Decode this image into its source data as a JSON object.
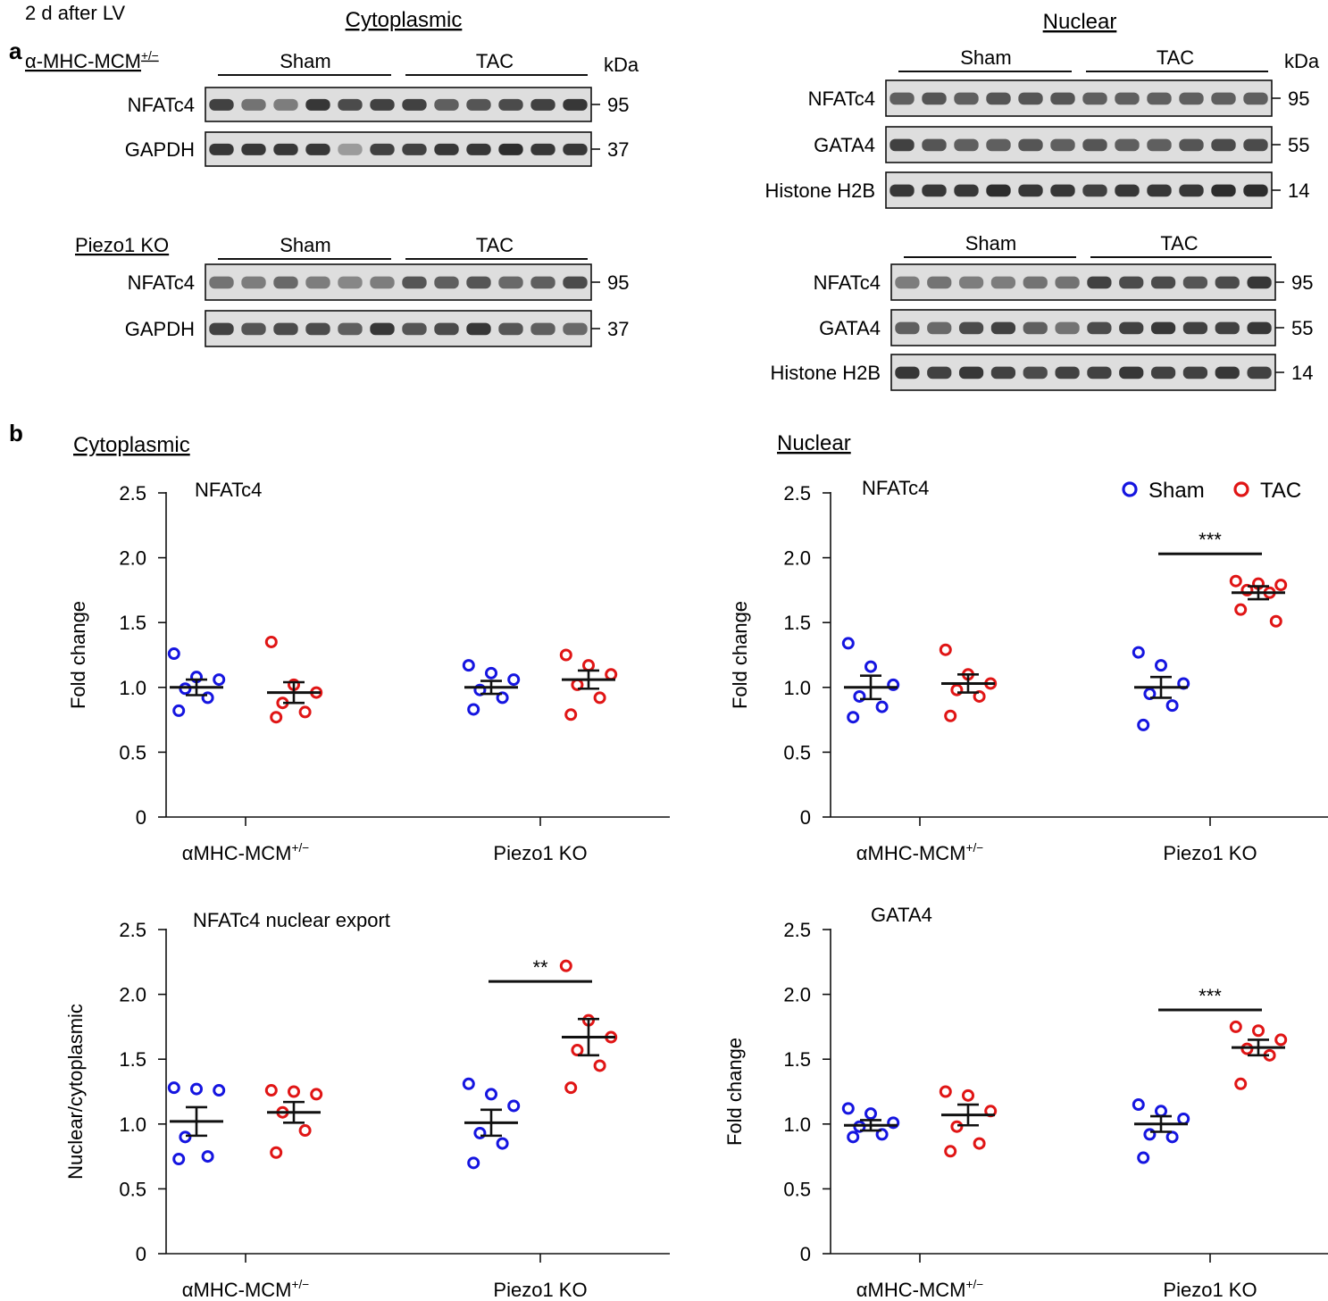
{
  "header": {
    "timepoint": "2 d after LV",
    "panel_a": "a",
    "panel_b": "b",
    "cyto_title": "Cytoplasmic",
    "nuc_title": "Nuclear",
    "cyto_title_b": "Cytoplasmic",
    "nuc_title_b": "Nuclear"
  },
  "blots": {
    "kda": "kDa",
    "cyto": [
      {
        "genotype_base": "α-MHC-MCM",
        "genotype_sup": "+/−",
        "sham": "Sham",
        "tac": "TAC",
        "lanes": [
          {
            "label": "NFATc4",
            "kda": "95",
            "intensity": [
              0.85,
              0.6,
              0.55,
              0.9,
              0.8,
              0.85,
              0.85,
              0.7,
              0.75,
              0.8,
              0.85,
              0.9
            ]
          },
          {
            "label": "GAPDH",
            "kda": "37",
            "intensity": [
              0.9,
              0.9,
              0.9,
              0.9,
              0.4,
              0.85,
              0.85,
              0.9,
              0.9,
              0.95,
              0.9,
              0.9
            ]
          }
        ]
      },
      {
        "genotype_base": "Piezo1 KO",
        "genotype_sup": "",
        "sham": "Sham",
        "tac": "TAC",
        "lanes": [
          {
            "label": "NFATc4",
            "kda": "95",
            "intensity": [
              0.6,
              0.55,
              0.65,
              0.55,
              0.5,
              0.55,
              0.75,
              0.7,
              0.75,
              0.65,
              0.7,
              0.8
            ]
          },
          {
            "label": "GAPDH",
            "kda": "37",
            "intensity": [
              0.85,
              0.75,
              0.8,
              0.8,
              0.7,
              0.9,
              0.75,
              0.8,
              0.9,
              0.75,
              0.7,
              0.65
            ]
          }
        ]
      }
    ],
    "nuc": [
      {
        "sham": "Sham",
        "tac": "TAC",
        "lanes": [
          {
            "label": "NFATc4",
            "kda": "95",
            "intensity": [
              0.7,
              0.75,
              0.7,
              0.75,
              0.75,
              0.75,
              0.7,
              0.7,
              0.7,
              0.7,
              0.7,
              0.7
            ]
          },
          {
            "label": "GATA4",
            "kda": "55",
            "intensity": [
              0.85,
              0.75,
              0.7,
              0.7,
              0.75,
              0.7,
              0.75,
              0.7,
              0.7,
              0.75,
              0.8,
              0.8
            ]
          },
          {
            "label": "Histone H2B",
            "kda": "14",
            "intensity": [
              0.9,
              0.9,
              0.9,
              0.95,
              0.9,
              0.9,
              0.85,
              0.9,
              0.9,
              0.9,
              0.95,
              0.95
            ]
          }
        ]
      },
      {
        "sham": "Sham",
        "tac": "TAC",
        "lanes": [
          {
            "label": "NFATc4",
            "kda": "95",
            "intensity": [
              0.55,
              0.6,
              0.55,
              0.55,
              0.6,
              0.6,
              0.85,
              0.8,
              0.8,
              0.75,
              0.8,
              0.9
            ]
          },
          {
            "label": "GATA4",
            "kda": "55",
            "intensity": [
              0.7,
              0.65,
              0.8,
              0.85,
              0.7,
              0.6,
              0.8,
              0.85,
              0.9,
              0.85,
              0.85,
              0.9
            ]
          },
          {
            "label": "Histone H2B",
            "kda": "14",
            "intensity": [
              0.9,
              0.85,
              0.9,
              0.85,
              0.8,
              0.85,
              0.85,
              0.9,
              0.85,
              0.85,
              0.9,
              0.85
            ]
          }
        ]
      }
    ]
  },
  "legend": {
    "sham": "Sham",
    "tac": "TAC"
  },
  "colors": {
    "sham": "#1515e0",
    "tac": "#e01515",
    "ink": "#111111"
  },
  "chart_data": [
    {
      "id": "cyto_nfatc4",
      "type": "scatter",
      "title": "NFATc4",
      "ylabel": "Fold change",
      "ylim": [
        0,
        2.5
      ],
      "yticks": [
        "0",
        "0.5",
        "1.0",
        "1.5",
        "2.0",
        "2.5"
      ],
      "groups": [
        {
          "base": "αMHC-MCM",
          "sup": "+/−"
        },
        {
          "base": "Piezo1 KO",
          "sup": ""
        }
      ],
      "series": [
        {
          "name": "Sham",
          "group": 0,
          "mean": 1.0,
          "sem": 0.06,
          "points": [
            1.26,
            1.08,
            1.06,
            0.99,
            0.92,
            0.82
          ]
        },
        {
          "name": "TAC",
          "group": 0,
          "mean": 0.96,
          "sem": 0.08,
          "points": [
            1.35,
            1.02,
            0.96,
            0.88,
            0.81,
            0.77
          ]
        },
        {
          "name": "Sham",
          "group": 1,
          "mean": 1.0,
          "sem": 0.05,
          "points": [
            1.17,
            1.11,
            1.06,
            0.98,
            0.92,
            0.83
          ]
        },
        {
          "name": "TAC",
          "group": 1,
          "mean": 1.06,
          "sem": 0.07,
          "points": [
            1.25,
            1.17,
            1.1,
            1.02,
            0.92,
            0.79
          ]
        }
      ],
      "significance": []
    },
    {
      "id": "nuc_nfatc4",
      "type": "scatter",
      "title": "NFATc4",
      "ylabel": "Fold change",
      "ylim": [
        0,
        2.5
      ],
      "yticks": [
        "0",
        "0.5",
        "1.0",
        "1.5",
        "2.0",
        "2.5"
      ],
      "groups": [
        {
          "base": "αMHC-MCM",
          "sup": "+/−"
        },
        {
          "base": "Piezo1 KO",
          "sup": ""
        }
      ],
      "series": [
        {
          "name": "Sham",
          "group": 0,
          "mean": 1.0,
          "sem": 0.09,
          "points": [
            1.34,
            1.16,
            1.02,
            0.93,
            0.85,
            0.77
          ]
        },
        {
          "name": "TAC",
          "group": 0,
          "mean": 1.03,
          "sem": 0.07,
          "points": [
            1.29,
            1.1,
            1.03,
            0.98,
            0.93,
            0.78
          ]
        },
        {
          "name": "Sham",
          "group": 1,
          "mean": 1.0,
          "sem": 0.08,
          "points": [
            1.27,
            1.17,
            1.03,
            0.95,
            0.86,
            0.71
          ]
        },
        {
          "name": "TAC",
          "group": 1,
          "mean": 1.73,
          "sem": 0.05,
          "points": [
            1.82,
            1.8,
            1.79,
            1.75,
            1.73,
            1.6,
            1.51
          ]
        }
      ],
      "significance": [
        {
          "group": 1,
          "label": "***",
          "y": 2.03
        }
      ]
    },
    {
      "id": "export_ratio",
      "type": "scatter",
      "title": "NFATc4 nuclear export",
      "ylabel": "Nuclear/cytoplasmic",
      "ylim": [
        0,
        2.5
      ],
      "yticks": [
        "0",
        "0.5",
        "1.0",
        "1.5",
        "2.0",
        "2.5"
      ],
      "groups": [
        {
          "base": "αMHC-MCM",
          "sup": "+/−"
        },
        {
          "base": "Piezo1 KO",
          "sup": ""
        }
      ],
      "series": [
        {
          "name": "Sham",
          "group": 0,
          "mean": 1.02,
          "sem": 0.11,
          "points": [
            1.28,
            1.27,
            1.26,
            0.9,
            0.75,
            0.73
          ]
        },
        {
          "name": "TAC",
          "group": 0,
          "mean": 1.09,
          "sem": 0.08,
          "points": [
            1.26,
            1.25,
            1.23,
            1.09,
            0.95,
            0.78
          ]
        },
        {
          "name": "Sham",
          "group": 1,
          "mean": 1.01,
          "sem": 0.1,
          "points": [
            1.31,
            1.23,
            1.14,
            0.93,
            0.85,
            0.7
          ]
        },
        {
          "name": "TAC",
          "group": 1,
          "mean": 1.67,
          "sem": 0.14,
          "points": [
            2.22,
            1.8,
            1.67,
            1.57,
            1.45,
            1.28
          ]
        }
      ],
      "significance": [
        {
          "group": 1,
          "label": "**",
          "y": 2.1
        }
      ]
    },
    {
      "id": "nuc_gata4",
      "type": "scatter",
      "title": "GATA4",
      "ylabel": "Fold change",
      "ylim": [
        0,
        2.5
      ],
      "yticks": [
        "0",
        "0.5",
        "1.0",
        "1.5",
        "2.0",
        "2.5"
      ],
      "groups": [
        {
          "base": "αMHC-MCM",
          "sup": "+/−"
        },
        {
          "base": "Piezo1 KO",
          "sup": ""
        }
      ],
      "series": [
        {
          "name": "Sham",
          "group": 0,
          "mean": 0.99,
          "sem": 0.04,
          "points": [
            1.12,
            1.08,
            1.01,
            0.98,
            0.92,
            0.9
          ]
        },
        {
          "name": "TAC",
          "group": 0,
          "mean": 1.07,
          "sem": 0.08,
          "points": [
            1.25,
            1.22,
            1.1,
            0.98,
            0.85,
            0.79
          ]
        },
        {
          "name": "Sham",
          "group": 1,
          "mean": 1.0,
          "sem": 0.06,
          "points": [
            1.15,
            1.1,
            1.04,
            0.92,
            0.9,
            0.74
          ]
        },
        {
          "name": "TAC",
          "group": 1,
          "mean": 1.59,
          "sem": 0.06,
          "points": [
            1.75,
            1.72,
            1.65,
            1.58,
            1.53,
            1.31
          ]
        }
      ],
      "significance": [
        {
          "group": 1,
          "label": "***",
          "y": 1.88
        }
      ]
    }
  ]
}
